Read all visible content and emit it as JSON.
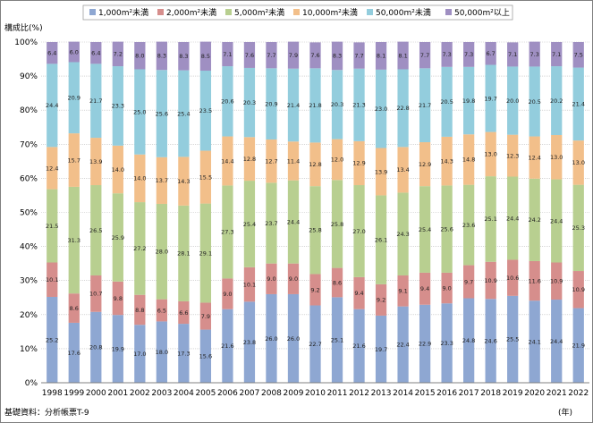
{
  "chart_data": {
    "type": "bar",
    "stacked": true,
    "ylabel": "構成比(%)",
    "xlabel": "(年)",
    "source_note": "基礎資料：分析帳票T-9",
    "ylim": [
      0,
      100
    ],
    "y_ticks": [
      "0%",
      "10%",
      "20%",
      "30%",
      "40%",
      "50%",
      "60%",
      "70%",
      "80%",
      "90%",
      "100%"
    ],
    "legend_placement": "top",
    "categories": [
      "1998",
      "1999",
      "2000",
      "2001",
      "2002",
      "2003",
      "2004",
      "2005",
      "2006",
      "2007",
      "2008",
      "2009",
      "2010",
      "2011",
      "2012",
      "2013",
      "2014",
      "2015",
      "2016",
      "2017",
      "2018",
      "2019",
      "2020",
      "2021",
      "2022"
    ],
    "series": [
      {
        "name": "1,000m²未満",
        "color": "#8ea7d2",
        "values": [
          25.2,
          17.6,
          20.8,
          19.9,
          17.0,
          18.0,
          17.3,
          15.6,
          21.6,
          23.8,
          26.0,
          26.0,
          22.7,
          25.1,
          21.6,
          19.7,
          22.4,
          22.9,
          23.3,
          24.8,
          24.6,
          25.5,
          24.1,
          24.4,
          21.9
        ]
      },
      {
        "name": "2,000m²未満",
        "color": "#d68e8c",
        "values": [
          10.1,
          8.6,
          10.7,
          9.8,
          8.8,
          6.5,
          6.6,
          7.9,
          9.0,
          10.1,
          9.0,
          9.0,
          9.2,
          8.6,
          9.4,
          9.2,
          9.1,
          9.4,
          9.0,
          9.7,
          10.9,
          10.6,
          11.6,
          10.9,
          10.9
        ]
      },
      {
        "name": "5,000m²未満",
        "color": "#b8cf90",
        "values": [
          21.5,
          31.3,
          26.5,
          25.9,
          27.2,
          28.0,
          28.1,
          29.1,
          27.3,
          25.4,
          23.7,
          24.4,
          25.8,
          25.8,
          27.0,
          26.1,
          24.3,
          25.4,
          25.6,
          23.6,
          25.1,
          24.4,
          24.2,
          24.4,
          25.3
        ]
      },
      {
        "name": "10,000m²未満",
        "color": "#f2bf8a",
        "values": [
          12.4,
          15.7,
          13.9,
          14.0,
          14.0,
          13.7,
          14.3,
          15.5,
          14.4,
          12.8,
          12.7,
          11.4,
          12.8,
          12.0,
          12.9,
          13.9,
          13.4,
          12.9,
          14.3,
          14.8,
          13.0,
          12.3,
          12.4,
          13.0,
          13.0
        ]
      },
      {
        "name": "50,000m²未満",
        "color": "#93cddd",
        "values": [
          24.4,
          20.9,
          21.7,
          23.3,
          25.0,
          25.6,
          25.4,
          23.5,
          20.6,
          20.3,
          20.9,
          21.4,
          21.8,
          20.3,
          21.3,
          23.0,
          22.8,
          21.7,
          20.5,
          19.8,
          19.7,
          20.0,
          20.5,
          20.2,
          21.4
        ]
      },
      {
        "name": "50,000m²以上",
        "color": "#9f8fc2",
        "values": [
          6.4,
          6.0,
          6.4,
          7.2,
          8.0,
          8.3,
          8.3,
          8.5,
          7.1,
          7.6,
          7.7,
          7.9,
          7.6,
          8.3,
          7.7,
          8.1,
          8.1,
          7.7,
          7.3,
          7.3,
          6.7,
          7.1,
          7.3,
          7.1,
          7.5
        ]
      }
    ]
  }
}
